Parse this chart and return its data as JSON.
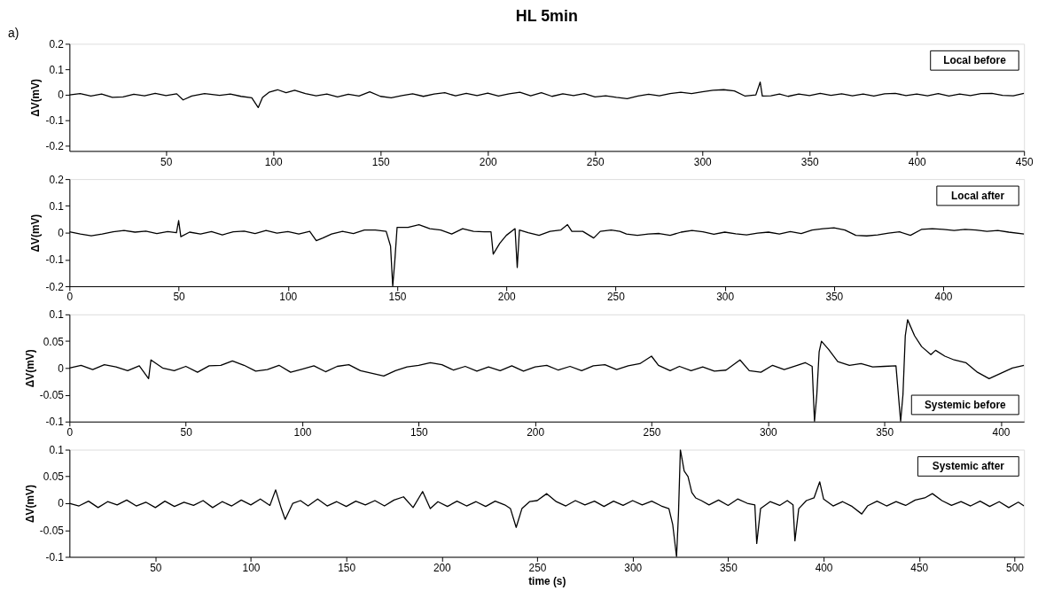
{
  "chart_data": [
    {
      "type": "line",
      "title": "HL 5min",
      "annotations": [
        "a)"
      ],
      "ylabel": "ΔV(mV)",
      "xlim": [
        5,
        450
      ],
      "xticks": [
        50,
        100,
        150,
        200,
        250,
        300,
        350,
        400,
        450
      ],
      "ylim": [
        -0.22,
        0.2
      ],
      "yticks": [
        -0.2,
        -0.1,
        0,
        0.1,
        0.2
      ],
      "grid": false,
      "legend": "top right",
      "series": [
        {
          "name": "Local before",
          "color": "#000000",
          "x": [
            5,
            10,
            15,
            20,
            25,
            30,
            35,
            40,
            45,
            50,
            55,
            58,
            62,
            68,
            75,
            80,
            85,
            90,
            93,
            95,
            98,
            102,
            106,
            110,
            115,
            120,
            125,
            130,
            135,
            140,
            145,
            150,
            155,
            160,
            165,
            170,
            175,
            180,
            185,
            190,
            195,
            200,
            205,
            210,
            215,
            220,
            225,
            230,
            235,
            240,
            245,
            250,
            255,
            260,
            265,
            270,
            275,
            280,
            285,
            290,
            295,
            300,
            305,
            310,
            315,
            320,
            325,
            327,
            328,
            332,
            336,
            340,
            345,
            350,
            355,
            360,
            365,
            370,
            375,
            380,
            385,
            390,
            395,
            400,
            405,
            410,
            415,
            420,
            425,
            430,
            435,
            440,
            445,
            450
          ],
          "values": [
            0,
            0.005,
            -0.005,
            0.003,
            -0.01,
            -0.008,
            0.002,
            -0.004,
            0.006,
            -0.003,
            0.004,
            -0.02,
            -0.005,
            0.005,
            -0.002,
            0.003,
            -0.006,
            -0.012,
            -0.05,
            -0.01,
            0.01,
            0.02,
            0.008,
            0.018,
            0.005,
            -0.004,
            0.003,
            -0.008,
            0.002,
            -0.005,
            0.012,
            -0.006,
            -0.012,
            -0.003,
            0.004,
            -0.006,
            0.003,
            0.008,
            -0.004,
            0.006,
            -0.003,
            0.007,
            -0.005,
            0.004,
            0.01,
            -0.004,
            0.008,
            -0.006,
            0.004,
            -0.003,
            0.005,
            -0.008,
            -0.004,
            -0.01,
            -0.015,
            -0.005,
            0.002,
            -0.004,
            0.005,
            0.01,
            0.005,
            0.012,
            0.018,
            0.02,
            0.015,
            -0.005,
            0,
            0.05,
            -0.005,
            -0.004,
            0.003,
            -0.006,
            0.003,
            -0.003,
            0.006,
            -0.002,
            0.004,
            -0.004,
            0.003,
            -0.005,
            0.004,
            0.006,
            -0.003,
            0.003,
            -0.004,
            0.005,
            -0.005,
            0.003,
            -0.003,
            0.005,
            0.006,
            -0.002,
            -0.004,
            0.006
          ]
        }
      ]
    },
    {
      "type": "line",
      "ylabel": "ΔV(mV)",
      "xlim": [
        0,
        437
      ],
      "xticks": [
        0,
        50,
        100,
        150,
        200,
        250,
        300,
        350,
        400
      ],
      "ylim": [
        -0.2,
        0.2
      ],
      "yticks": [
        -0.2,
        -0.1,
        0,
        0.1,
        0.2
      ],
      "grid": false,
      "legend": "top right",
      "series": [
        {
          "name": "Local after",
          "color": "#000000",
          "x": [
            0,
            5,
            10,
            15,
            20,
            25,
            30,
            35,
            40,
            45,
            49,
            50,
            51,
            55,
            60,
            65,
            70,
            75,
            80,
            85,
            90,
            95,
            100,
            105,
            110,
            113,
            116,
            120,
            125,
            130,
            135,
            140,
            145,
            147,
            148,
            149,
            150,
            155,
            160,
            165,
            170,
            175,
            180,
            185,
            190,
            193,
            194,
            197,
            200,
            204,
            205,
            206,
            210,
            215,
            220,
            225,
            228,
            230,
            235,
            240,
            243,
            248,
            252,
            255,
            260,
            265,
            270,
            275,
            280,
            285,
            290,
            295,
            300,
            305,
            310,
            315,
            320,
            325,
            330,
            335,
            340,
            345,
            350,
            355,
            360,
            365,
            370,
            375,
            380,
            385,
            390,
            395,
            400,
            405,
            410,
            415,
            420,
            425,
            430,
            437
          ],
          "values": [
            0.003,
            -0.005,
            -0.012,
            -0.005,
            0.003,
            0.008,
            0.002,
            0.006,
            -0.003,
            0.004,
            0,
            0.045,
            -0.015,
            0.002,
            -0.005,
            0.004,
            -0.008,
            0.003,
            0.006,
            -0.003,
            0.008,
            -0.002,
            0.004,
            -0.005,
            0.005,
            -0.03,
            -0.02,
            -0.005,
            0.005,
            -0.003,
            0.01,
            0.01,
            0.005,
            -0.05,
            -0.2,
            -0.1,
            0.02,
            0.02,
            0.03,
            0.015,
            0.01,
            -0.005,
            0.015,
            0.005,
            0.003,
            0.003,
            -0.08,
            -0.04,
            -0.01,
            0.015,
            -0.13,
            0.01,
            0,
            -0.01,
            0.005,
            0.01,
            0.03,
            0.005,
            0.005,
            -0.02,
            0.005,
            0.01,
            0.005,
            -0.005,
            -0.01,
            -0.005,
            -0.003,
            -0.01,
            0.002,
            0.008,
            0.003,
            -0.006,
            0.002,
            -0.004,
            -0.008,
            -0.002,
            0.002,
            -0.005,
            0.004,
            -0.003,
            0.01,
            0.015,
            0.018,
            0.01,
            -0.01,
            -0.012,
            -0.008,
            -0.002,
            0.003,
            -0.01,
            0.012,
            0.015,
            0.012,
            0.008,
            0.012,
            0.01,
            0.005,
            0.008,
            0.002,
            -0.005
          ]
        }
      ]
    },
    {
      "type": "line",
      "ylabel": "ΔV(mV)",
      "xlim": [
        0,
        410
      ],
      "xticks": [
        0,
        50,
        100,
        150,
        200,
        250,
        300,
        350,
        400
      ],
      "ylim": [
        -0.1,
        0.1
      ],
      "yticks": [
        -0.1,
        -0.05,
        0,
        0.05,
        0.1
      ],
      "grid": false,
      "legend": "bottom right",
      "series": [
        {
          "name": "Systemic before",
          "color": "#000000",
          "x": [
            0,
            5,
            10,
            15,
            20,
            25,
            30,
            34,
            35,
            40,
            45,
            50,
            55,
            60,
            65,
            70,
            75,
            80,
            85,
            90,
            95,
            100,
            105,
            110,
            115,
            120,
            125,
            130,
            135,
            140,
            145,
            150,
            155,
            160,
            165,
            170,
            175,
            180,
            185,
            190,
            195,
            200,
            205,
            210,
            215,
            220,
            225,
            230,
            235,
            240,
            245,
            250,
            253,
            258,
            262,
            267,
            272,
            277,
            282,
            288,
            292,
            297,
            302,
            307,
            312,
            316,
            319,
            320,
            321,
            322,
            323,
            326,
            330,
            335,
            340,
            345,
            350,
            355,
            357,
            358,
            359,
            360,
            363,
            366,
            370,
            372,
            376,
            380,
            385,
            390,
            395,
            400,
            405,
            410
          ],
          "values": [
            0,
            0.005,
            -0.003,
            0.006,
            0.002,
            -0.005,
            0.004,
            -0.02,
            0.015,
            0,
            -0.005,
            0.003,
            -0.008,
            0.004,
            0.005,
            0.013,
            0.005,
            -0.006,
            -0.003,
            0.005,
            -0.008,
            -0.002,
            0.004,
            -0.007,
            0.003,
            0.006,
            -0.005,
            -0.01,
            -0.015,
            -0.005,
            0.002,
            0.005,
            0.01,
            0.006,
            -0.004,
            0.003,
            -0.006,
            0.002,
            -0.005,
            0.004,
            -0.006,
            0.002,
            0.005,
            -0.004,
            0.003,
            -0.005,
            0.004,
            0.006,
            -0.003,
            0.004,
            0.008,
            0.022,
            0.005,
            -0.005,
            0.003,
            -0.005,
            0.002,
            -0.006,
            -0.004,
            0.015,
            -0.005,
            -0.008,
            0.005,
            -0.003,
            0.004,
            0.01,
            0.003,
            -0.1,
            -0.05,
            0.03,
            0.05,
            0.035,
            0.012,
            0.005,
            0.008,
            0.002,
            0.003,
            0.004,
            -0.1,
            -0.05,
            0.06,
            0.09,
            0.06,
            0.04,
            0.025,
            0.033,
            0.022,
            0.015,
            0.01,
            -0.008,
            -0.02,
            -0.01,
            0,
            0.005
          ]
        }
      ]
    },
    {
      "type": "line",
      "ylabel": "ΔV(mV)",
      "xlabel": "time (s)",
      "xlim": [
        5,
        505
      ],
      "xticks": [
        50,
        100,
        150,
        200,
        250,
        300,
        350,
        400,
        450,
        500
      ],
      "ylim": [
        -0.1,
        0.1
      ],
      "yticks": [
        -0.1,
        -0.05,
        0,
        0.05,
        0.1
      ],
      "grid": false,
      "legend": "top right",
      "series": [
        {
          "name": "Systemic after",
          "color": "#000000",
          "x": [
            5,
            10,
            15,
            20,
            25,
            30,
            35,
            40,
            45,
            50,
            55,
            60,
            65,
            70,
            75,
            80,
            85,
            90,
            95,
            100,
            105,
            110,
            113,
            116,
            118,
            122,
            126,
            130,
            135,
            140,
            145,
            150,
            155,
            160,
            165,
            170,
            175,
            180,
            185,
            190,
            194,
            198,
            203,
            208,
            213,
            218,
            223,
            228,
            233,
            236,
            239,
            242,
            246,
            250,
            255,
            260,
            265,
            270,
            275,
            280,
            285,
            290,
            295,
            300,
            305,
            310,
            315,
            319,
            321,
            323,
            324,
            325,
            327,
            329,
            331,
            333,
            336,
            340,
            345,
            350,
            355,
            360,
            364,
            365,
            367,
            372,
            377,
            381,
            384,
            385,
            387,
            391,
            395,
            398,
            400,
            405,
            410,
            415,
            420,
            423,
            428,
            433,
            438,
            443,
            448,
            453,
            457,
            462,
            467,
            472,
            477,
            482,
            487,
            492,
            497,
            502,
            505
          ],
          "values": [
            0,
            -0.005,
            0.004,
            -0.008,
            0.003,
            -0.003,
            0.006,
            -0.005,
            0.002,
            -0.008,
            0.004,
            -0.006,
            0.002,
            -0.004,
            0.005,
            -0.008,
            0.003,
            -0.005,
            0.006,
            -0.003,
            0.008,
            -0.004,
            0.025,
            -0.01,
            -0.03,
            0,
            0.005,
            -0.005,
            0.008,
            -0.005,
            0.003,
            -0.006,
            0.004,
            -0.003,
            0.005,
            -0.005,
            0.006,
            0.012,
            -0.008,
            0.022,
            -0.01,
            0.003,
            -0.006,
            0.004,
            -0.005,
            0.003,
            -0.006,
            0.004,
            -0.003,
            -0.01,
            -0.045,
            -0.01,
            0.003,
            0.005,
            0.018,
            0.003,
            -0.005,
            0.005,
            -0.003,
            0.004,
            -0.006,
            0.004,
            -0.004,
            0.005,
            -0.003,
            0.004,
            -0.005,
            -0.01,
            -0.04,
            -0.1,
            -0.02,
            0.1,
            0.06,
            0.05,
            0.02,
            0.01,
            0.005,
            -0.003,
            0.006,
            -0.004,
            0.008,
            0,
            -0.003,
            -0.075,
            -0.01,
            0.003,
            -0.004,
            0.005,
            -0.003,
            -0.07,
            -0.01,
            0.005,
            0.01,
            0.04,
            0.008,
            -0.005,
            0.003,
            -0.006,
            -0.02,
            -0.005,
            0.004,
            -0.005,
            0.003,
            -0.004,
            0.006,
            0.01,
            0.018,
            0.005,
            -0.004,
            0.003,
            -0.005,
            0.004,
            -0.006,
            0.003,
            -0.008,
            0.002,
            -0.005
          ]
        }
      ]
    }
  ]
}
